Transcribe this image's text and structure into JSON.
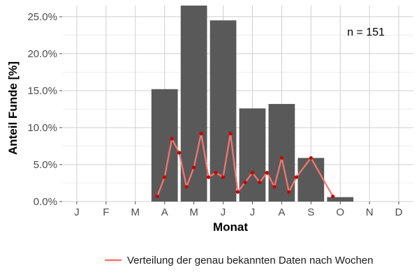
{
  "chart_data": {
    "type": "bar",
    "categories": [
      "J",
      "F",
      "M",
      "A",
      "M",
      "J",
      "J",
      "A",
      "S",
      "O",
      "N",
      "D"
    ],
    "values": [
      0,
      0,
      0,
      15.2,
      26.5,
      24.5,
      12.6,
      13.2,
      5.9,
      0.6,
      0,
      0
    ],
    "xlabel": "Monat",
    "ylabel": "Anteil Funde [%]",
    "ylim": [
      0,
      26.5
    ],
    "yticks": [
      "0.0%",
      "5.0%",
      "10.0%",
      "15.0%",
      "20.0%",
      "25.0%"
    ],
    "grid": true,
    "annotation": "n = 151",
    "line_series": {
      "name": "Verteilung der genau bekannten Daten nach Wochen",
      "color": "#f8766d",
      "point_color": "#cc0000",
      "x": [
        3.75,
        4.0,
        4.25,
        4.5,
        4.75,
        5.0,
        5.25,
        5.5,
        5.75,
        6.0,
        6.25,
        6.5,
        6.75,
        7.0,
        7.25,
        7.5,
        7.75,
        8.0,
        8.25,
        8.5,
        9.0,
        9.75
      ],
      "y": [
        0.7,
        3.3,
        8.5,
        6.6,
        2.0,
        4.6,
        9.2,
        3.3,
        3.9,
        3.3,
        9.2,
        1.3,
        2.6,
        3.9,
        2.6,
        3.9,
        2.0,
        5.9,
        1.3,
        3.3,
        5.9,
        0.7
      ]
    },
    "legend_position": "bottom",
    "bar_color": "#595959"
  }
}
